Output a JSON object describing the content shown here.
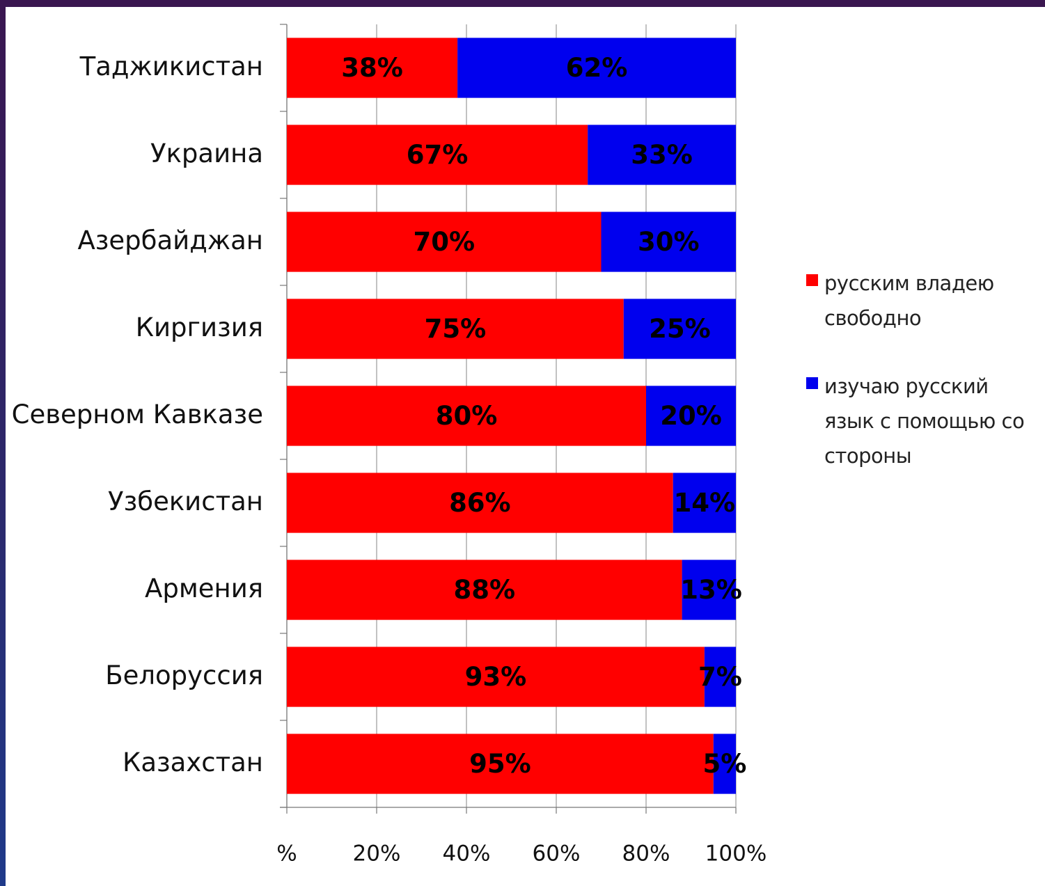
{
  "chart_data": {
    "type": "bar",
    "orientation": "horizontal",
    "stacked": "percent",
    "categories": [
      "Таджикистан",
      "Украина",
      "Азербайджан",
      "Киргизия",
      "На Северном  Кавказе",
      "Узбекистан",
      "Армения",
      "Белоруссия",
      "Казахстан"
    ],
    "series": [
      {
        "name": "русским владею свободно",
        "color": "#ff0000",
        "values": [
          38,
          67,
          70,
          75,
          80,
          86,
          88,
          93,
          95
        ],
        "labels": [
          "38%",
          "67%",
          "70%",
          "75%",
          "80%",
          "86%",
          "88%",
          "93%",
          "95%"
        ]
      },
      {
        "name": "изучаю русский язык с помощью со стороны",
        "color": "#0000ee",
        "values": [
          62,
          33,
          30,
          25,
          20,
          14,
          13,
          7,
          5
        ],
        "labels": [
          "62%",
          "33%",
          "30%",
          "25%",
          "20%",
          "14%",
          "13%",
          "7%",
          "5%"
        ]
      }
    ],
    "x_ticks": [
      "%",
      "20%",
      "40%",
      "60%",
      "80%",
      "100%"
    ],
    "xlim": [
      0,
      100
    ],
    "grid": "vertical",
    "legend_position": "right"
  },
  "legend": {
    "items": [
      {
        "name": "русским владею свободно",
        "color": "#ff0000"
      },
      {
        "name": "изучаю русский язык с помощью со стороны",
        "color": "#0000ee"
      }
    ]
  }
}
